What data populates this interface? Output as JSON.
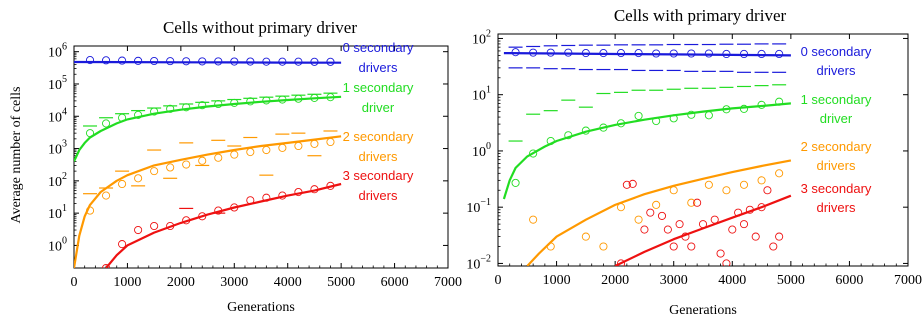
{
  "chart_data": [
    {
      "type": "scatter",
      "title": "Cells without primary driver",
      "xlabel": "Generations",
      "ylabel": "Average number of cells",
      "xlim": [
        0,
        7000
      ],
      "ylim": [
        0.2,
        1500000
      ],
      "yscale": "log",
      "x_ticks": [
        "0",
        "1000",
        "2000",
        "3000",
        "4000",
        "5000",
        "6000",
        "7000"
      ],
      "x_tick_values": [
        0,
        1000,
        2000,
        3000,
        4000,
        5000,
        6000,
        7000
      ],
      "y_ticks": [
        {
          "base": "10",
          "exp": "0",
          "value": 1
        },
        {
          "base": "10",
          "exp": "1",
          "value": 10
        },
        {
          "base": "10",
          "exp": "2",
          "value": 100
        },
        {
          "base": "10",
          "exp": "3",
          "value": 1000
        },
        {
          "base": "10",
          "exp": "4",
          "value": 10000
        },
        {
          "base": "10",
          "exp": "5",
          "value": 100000
        },
        {
          "base": "10",
          "exp": "6",
          "value": 1000000
        }
      ],
      "legend_placement": "right",
      "series": [
        {
          "name": "0 secondary drivers",
          "label_lines": [
            "0 secondary",
            "drivers"
          ],
          "color": "#1a1adb",
          "curve": {
            "x": [
              0,
              1000,
              2000,
              3000,
              4000,
              5000
            ],
            "y": [
              480000,
              475000,
              470000,
              465000,
              460000,
              455000
            ]
          },
          "points": {
            "x": [
              300,
              600,
              900,
              1200,
              1500,
              1800,
              2100,
              2400,
              2700,
              3000,
              3300,
              3600,
              3900,
              4200,
              4500,
              4800
            ],
            "y": [
              550000,
              540000,
              530000,
              520000,
              515000,
              510000,
              505000,
              500000,
              500000,
              495000,
              495000,
              490000,
              490000,
              490000,
              485000,
              485000
            ]
          },
          "dashes": {
            "x": [],
            "y": []
          }
        },
        {
          "name": "1 secondary driver",
          "label_lines": [
            "1 secondary",
            "driver"
          ],
          "color": "#22dd22",
          "curve": {
            "x": [
              0,
              100,
              200,
              300,
              500,
              800,
              1000,
              1500,
              2000,
              2500,
              3000,
              3500,
              4000,
              4500,
              5000
            ],
            "y": [
              400,
              900,
              1500,
              2200,
              3500,
              6000,
              8000,
              12000,
              16000,
              20000,
              24000,
              28000,
              32000,
              36000,
              40000
            ]
          },
          "points": {
            "x": [
              300,
              600,
              900,
              1200,
              1500,
              1800,
              2100,
              2400,
              2700,
              3000,
              3300,
              3600,
              3900,
              4200,
              4500,
              4800
            ],
            "y": [
              3000,
              6000,
              9000,
              11000,
              14000,
              17000,
              19000,
              22000,
              24000,
              26000,
              29000,
              31000,
              33000,
              35000,
              37000,
              39000
            ]
          },
          "dashes": {
            "x": [
              300,
              600,
              900,
              1200,
              1500,
              1800,
              2100,
              2400,
              2700,
              3000,
              3300,
              3600,
              3900,
              4200,
              4500,
              4800
            ],
            "y": [
              5000,
              9000,
              12000,
              15000,
              18000,
              21000,
              24000,
              27000,
              30000,
              33000,
              36000,
              39000,
              42000,
              45000,
              48000,
              52000
            ]
          }
        },
        {
          "name": "2 secondary drivers",
          "label_lines": [
            "2 secondary",
            "drivers"
          ],
          "color": "#ff9900",
          "curve": {
            "x": [
              0,
              100,
              200,
              300,
              500,
              800,
              1000,
              1500,
              2000,
              2500,
              3000,
              3500,
              4000,
              4500,
              5000
            ],
            "y": [
              0.2,
              2,
              8,
              18,
              45,
              100,
              150,
              300,
              450,
              650,
              900,
              1200,
              1500,
              1900,
              2400
            ]
          },
          "points": {
            "x": [
              300,
              600,
              900,
              1200,
              1500,
              1800,
              2100,
              2400,
              2700,
              3000,
              3300,
              3600,
              3900,
              4200,
              4500,
              4800
            ],
            "y": [
              12,
              35,
              80,
              120,
              200,
              260,
              320,
              420,
              520,
              650,
              780,
              900,
              1050,
              1200,
              1400,
              1600
            ]
          },
          "dashes": {
            "x": [
              300,
              600,
              900,
              1200,
              1500,
              1800,
              2100,
              2400,
              2700,
              3000,
              3300,
              3600,
              3900,
              4200,
              4500,
              4800
            ],
            "y": [
              40,
              60,
              200,
              70,
              900,
              120,
              1500,
              300,
              1800,
              1200,
              2200,
              150,
              2800,
              3000,
              600,
              3500
            ]
          }
        },
        {
          "name": "3 secondary drivers",
          "label_lines": [
            "3 secondary",
            "drivers"
          ],
          "color": "#ee1111",
          "curve": {
            "x": [
              600,
              800,
              1000,
              1500,
              2000,
              2500,
              3000,
              3500,
              4000,
              4500,
              5000
            ],
            "y": [
              0.2,
              0.5,
              1,
              2.5,
              5,
              9,
              15,
              23,
              35,
              50,
              80
            ]
          },
          "points": {
            "x": [
              600,
              900,
              1200,
              1500,
              1800,
              2100,
              2400,
              2700,
              3000,
              3300,
              3600,
              3900,
              4200,
              4500,
              4800
            ],
            "y": [
              0.2,
              1.1,
              3,
              4,
              4,
              6,
              8,
              12,
              15,
              25,
              30,
              35,
              45,
              55,
              70
            ]
          },
          "dashes": {
            "x": [
              2100,
              2700
            ],
            "y": [
              14,
              10
            ]
          }
        }
      ]
    },
    {
      "type": "scatter",
      "title": "Cells with primary driver",
      "xlabel": "Generations",
      "ylabel": "",
      "xlim": [
        0,
        7000
      ],
      "ylim": [
        0.009,
        120
      ],
      "yscale": "log",
      "x_ticks": [
        "0",
        "1000",
        "2000",
        "3000",
        "4000",
        "5000",
        "6000",
        "7000"
      ],
      "x_tick_values": [
        0,
        1000,
        2000,
        3000,
        4000,
        5000,
        6000,
        7000
      ],
      "y_ticks": [
        {
          "base": "10",
          "exp": "−2",
          "value": 0.01
        },
        {
          "base": "10",
          "exp": "−1",
          "value": 0.1
        },
        {
          "base": "10",
          "exp": "0",
          "value": 1
        },
        {
          "base": "10",
          "exp": "1",
          "value": 10
        },
        {
          "base": "10",
          "exp": "2",
          "value": 100
        }
      ],
      "legend_placement": "right",
      "series": [
        {
          "name": "0 secondary drivers",
          "label_lines": [
            "0 secondary",
            "drivers"
          ],
          "color": "#1a1adb",
          "curve": {
            "x": [
              100,
              1000,
              2000,
              3000,
              4000,
              5000
            ],
            "y": [
              55,
              54,
              53,
              52,
              51,
              50
            ]
          },
          "points": {
            "x": [
              300,
              600,
              900,
              1200,
              1500,
              1800,
              2100,
              2400,
              2700,
              3000,
              3300,
              3600,
              3900,
              4200,
              4500,
              4800
            ],
            "y": [
              57,
              56,
              56,
              56,
              55,
              55,
              55,
              55,
              54,
              54,
              54,
              54,
              53,
              53,
              53,
              53
            ]
          },
          "dashes": {
            "x": [
              300,
              600,
              900,
              1200,
              1500,
              1800,
              2100,
              2400,
              2700,
              3000,
              3300,
              3600,
              3900,
              4200,
              4500,
              4800,
              300,
              600,
              900,
              1200,
              1500,
              1800,
              2100,
              2400,
              2700,
              3000,
              3300,
              3600,
              3900,
              4200,
              4500,
              4800
            ],
            "y": [
              70,
              72,
              74,
              75,
              76,
              76,
              77,
              77,
              77,
              78,
              78,
              78,
              79,
              79,
              80,
              80,
              30,
              30,
              29,
              29,
              28,
              28,
              28,
              27,
              27,
              27,
              26,
              26,
              26,
              25,
              25,
              25
            ]
          }
        },
        {
          "name": "1 secondary driver",
          "label_lines": [
            "1 secondary",
            "driver"
          ],
          "color": "#22dd22",
          "curve": {
            "x": [
              100,
              200,
              300,
              500,
              800,
              1000,
              1500,
              2000,
              2500,
              3000,
              3500,
              4000,
              4500,
              5000
            ],
            "y": [
              0.14,
              0.3,
              0.5,
              0.8,
              1.2,
              1.5,
              2.2,
              2.9,
              3.6,
              4.3,
              5,
              5.7,
              6.3,
              7
            ]
          },
          "points": {
            "x": [
              300,
              600,
              900,
              1200,
              1500,
              1800,
              2100,
              2400,
              2700,
              3000,
              3300,
              3600,
              3900,
              4200,
              4500,
              4800
            ],
            "y": [
              0.27,
              0.9,
              1.5,
              1.9,
              2.3,
              2.6,
              3.1,
              4.2,
              3.4,
              3.8,
              4.4,
              4.3,
              5.5,
              5.6,
              6.6,
              7.5
            ]
          },
          "dashes": {
            "x": [
              300,
              600,
              900,
              1200,
              1500,
              1800,
              2100,
              2400,
              2700,
              3000,
              3300,
              3600,
              3900,
              4200,
              4500,
              4800
            ],
            "y": [
              1.5,
              4.5,
              5.2,
              8,
              6,
              10.5,
              11,
              12,
              12,
              12.5,
              13,
              13,
              13.5,
              14,
              14.5,
              15
            ]
          }
        },
        {
          "name": "2 secondary drivers",
          "label_lines": [
            "2 secondary",
            "drivers"
          ],
          "color": "#ff9900",
          "curve": {
            "x": [
              500,
              700,
              1000,
              1500,
              2000,
              2500,
              3000,
              3500,
              4000,
              4500,
              5000
            ],
            "y": [
              0.009,
              0.015,
              0.03,
              0.06,
              0.11,
              0.17,
              0.24,
              0.32,
              0.42,
              0.54,
              0.68
            ]
          },
          "points": {
            "x": [
              600,
              900,
              1500,
              1800,
              2100,
              2400,
              2700,
              3000,
              3300,
              3600,
              3900,
              4200,
              4500,
              4800
            ],
            "y": [
              0.06,
              0.02,
              0.03,
              0.02,
              0.1,
              0.06,
              0.11,
              0.2,
              0.12,
              0.25,
              0.2,
              0.25,
              0.3,
              0.4
            ]
          },
          "dashes": {
            "x": [],
            "y": []
          }
        },
        {
          "name": "3 secondary drivers",
          "label_lines": [
            "3 secondary",
            "drivers"
          ],
          "color": "#ee1111",
          "curve": {
            "x": [
              2000,
              2500,
              3000,
              3500,
              4000,
              4500,
              5000
            ],
            "y": [
              0.009,
              0.016,
              0.027,
              0.042,
              0.065,
              0.1,
              0.16
            ]
          },
          "points": {
            "x": [
              2100,
              2200,
              2300,
              2500,
              2600,
              2800,
              2900,
              3000,
              3100,
              3200,
              3300,
              3400,
              3500,
              3700,
              3800,
              3900,
              4000,
              4100,
              4200,
              4300,
              4400,
              4500,
              4600,
              4700,
              4800
            ],
            "y": [
              0.01,
              0.25,
              0.26,
              0.04,
              0.08,
              0.07,
              0.04,
              0.02,
              0.05,
              0.03,
              0.02,
              0.12,
              0.05,
              0.06,
              0.015,
              0.01,
              0.04,
              0.08,
              0.05,
              0.09,
              0.03,
              0.1,
              0.2,
              0.02,
              0.03
            ]
          },
          "dashes": {
            "x": [],
            "y": []
          }
        }
      ]
    }
  ]
}
